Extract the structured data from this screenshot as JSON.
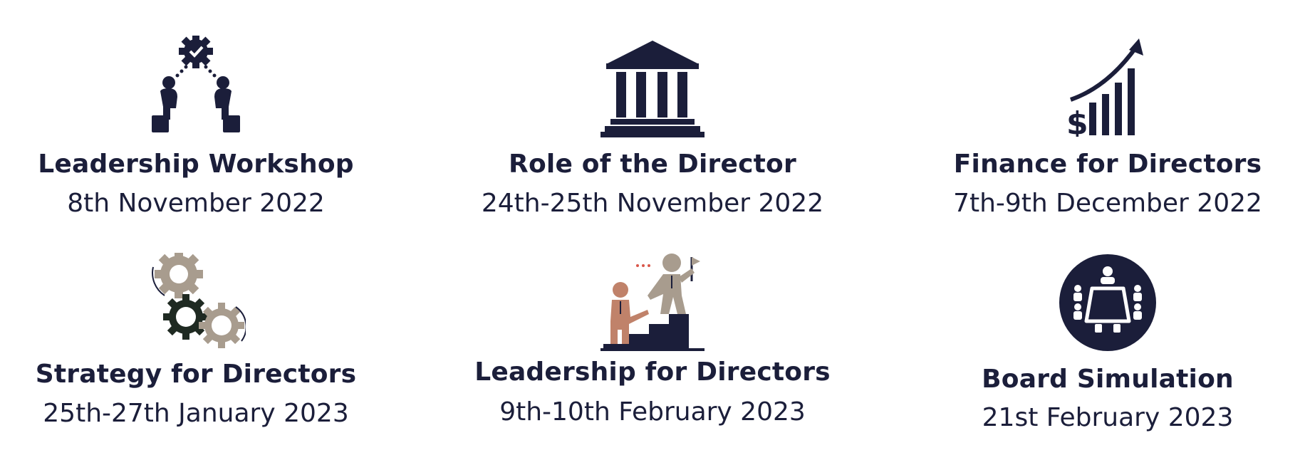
{
  "events": [
    {
      "title": "Leadership Workshop",
      "date": "8th November 2022",
      "icon": "collaboration-gear-icon"
    },
    {
      "title": "Role of the Director",
      "date": "24th-25th November 2022",
      "icon": "institution-building-icon"
    },
    {
      "title": "Finance for Directors",
      "date": "7th-9th December 2022",
      "icon": "growth-chart-dollar-icon"
    },
    {
      "title": "Strategy for Directors",
      "date": "25th-27th January 2023",
      "icon": "gears-icon"
    },
    {
      "title": "Leadership for Directors",
      "date": "9th-10th February 2023",
      "icon": "helping-hand-stairs-icon"
    },
    {
      "title": "Board Simulation",
      "date": "21st February 2023",
      "icon": "boardroom-table-icon"
    }
  ],
  "colors": {
    "navy": "#1b1e3a",
    "taupe": "#a89c8e",
    "terracotta": "#c0826a",
    "dark_gear": "#1f2a22",
    "accent_red": "#d9574a"
  }
}
